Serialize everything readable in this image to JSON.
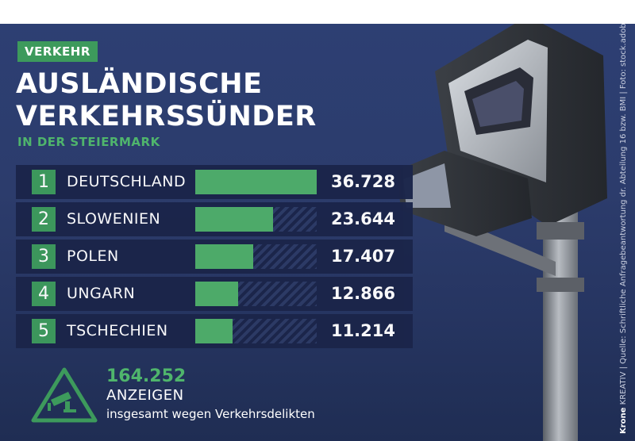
{
  "header": {
    "tag": "VERKEHR",
    "title_line1": "AUSLÄNDISCHE",
    "title_line2": "VERKEHRSSÜNDER",
    "subtitle": "IN DER STEIERMARK"
  },
  "chart_data": {
    "type": "bar",
    "orientation": "horizontal",
    "ranks": [
      "1",
      "2",
      "3",
      "4",
      "5"
    ],
    "categories": [
      "DEUTSCHLAND",
      "SLOWENIEN",
      "POLEN",
      "UNGARN",
      "TSCHECHIEN"
    ],
    "values": [
      36728,
      23644,
      17407,
      12866,
      11214
    ],
    "value_labels": [
      "36.728",
      "23.644",
      "17.407",
      "12.866",
      "11.214"
    ],
    "xlim": [
      0,
      36728
    ],
    "bar_color": "#4fae6a"
  },
  "summary": {
    "total": "164.252",
    "label": "ANZEIGEN",
    "description": "insgesamt wegen Verkehrsdelikten",
    "icon": "speed-camera-warning-icon"
  },
  "source": {
    "brand_bold": "Krone",
    "brand": "KREATIV",
    "text": "| Quelle: Schriftliche Anfragebeantwortung dr. Abteilung 16 bzw. BMI | Foto: stock.adobe.com"
  },
  "colors": {
    "accent": "#3d9a5c",
    "background": "#2c3c6c"
  }
}
